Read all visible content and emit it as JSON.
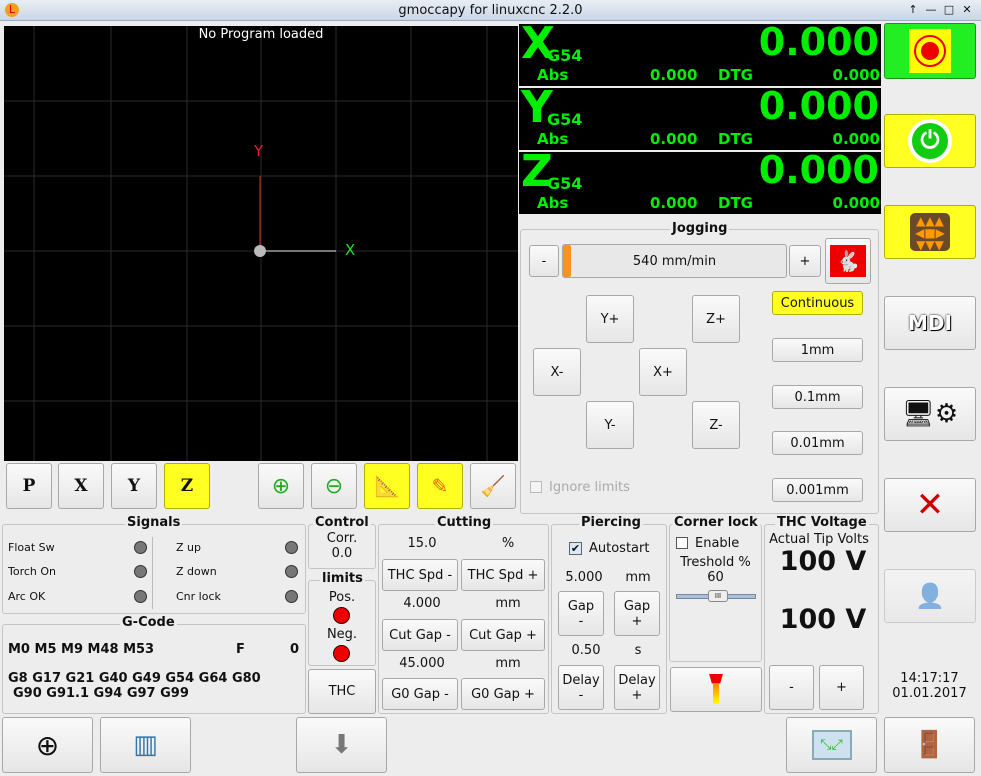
{
  "window": {
    "title": "gmoccapy for linuxcnc  2.2.0",
    "controls": [
      "↑",
      "—",
      "□",
      "✕"
    ]
  },
  "preview": {
    "status": "No Program loaded",
    "axis_x": "X",
    "axis_y": "Y",
    "colors": {
      "x_axis": "#22dd22",
      "y_axis": "#ee2222"
    }
  },
  "view_buttons": [
    {
      "label": "P",
      "icon": "view-perspective-icon"
    },
    {
      "label": "X",
      "icon": "view-x-icon"
    },
    {
      "label": "Y",
      "icon": "view-y-icon"
    },
    {
      "label": "Z",
      "icon": "view-z-icon",
      "active": true
    },
    {
      "icon": "zoom-in-icon"
    },
    {
      "icon": "zoom-out-icon"
    },
    {
      "icon": "dimensions-icon",
      "active": true
    },
    {
      "icon": "pencil-icon",
      "active": true
    },
    {
      "icon": "broom-clear-icon"
    }
  ],
  "dro": [
    {
      "axis": "X",
      "coord": "G54",
      "value": "0.000",
      "abs_label": "Abs",
      "abs": "0.000",
      "dtg_label": "DTG",
      "dtg": "0.000"
    },
    {
      "axis": "Y",
      "coord": "G54",
      "value": "0.000",
      "abs_label": "Abs",
      "abs": "0.000",
      "dtg_label": "DTG",
      "dtg": "0.000"
    },
    {
      "axis": "Z",
      "coord": "G54",
      "value": "0.000",
      "abs_label": "Abs",
      "abs": "0.000",
      "dtg_label": "DTG",
      "dtg": "0.000"
    }
  ],
  "colors": {
    "dro_text": "#00ee00",
    "estop": "#22ee22",
    "active": "#ffff22",
    "led_on": "#ee0000",
    "led_off": "#777777"
  },
  "jogging": {
    "title": "Jogging",
    "minus": "-",
    "plus": "+",
    "speed": "540 mm/min",
    "speed_fraction": 0.02,
    "buttons": {
      "yplus": "Y+",
      "zplus": "Z+",
      "xminus": "X-",
      "xplus": "X+",
      "yminus": "Y-",
      "zminus": "Z-"
    },
    "increments": [
      "Continuous",
      "1mm",
      "0.1mm",
      "0.01mm",
      "0.001mm"
    ],
    "ignore_limits": "Ignore limits"
  },
  "signals": {
    "title": "Signals",
    "items": [
      "Float Sw",
      "Torch On",
      "Arc OK",
      "Z up",
      "Z down",
      "Cnr lock"
    ]
  },
  "gcode": {
    "title": "G-Code",
    "mcodes": "M0 M5 M9 M48 M53",
    "f_label": "F",
    "f_value": "0",
    "gcodes1": "G8 G17 G21 G40 G49 G54 G64 G80",
    "gcodes2": "G90 G91.1 G94 G97 G99"
  },
  "control": {
    "title": "Control",
    "corr_label": "Corr.",
    "corr_value": "0.0"
  },
  "limits": {
    "title": "limits",
    "pos": "Pos.",
    "neg": "Neg.",
    "thc": "THC"
  },
  "cutting": {
    "title": "Cutting",
    "thc_spd": "15.0",
    "thc_unit": "%",
    "thc_minus": "THC Spd -",
    "thc_plus": "THC Spd +",
    "cut_gap": "4.000",
    "cut_unit": "mm",
    "cut_minus": "Cut Gap -",
    "cut_plus": "Cut Gap +",
    "g0_gap": "45.000",
    "g0_unit": "mm",
    "g0_minus": "G0 Gap -",
    "g0_plus": "G0 Gap +"
  },
  "piercing": {
    "title": "Piercing",
    "autostart": "Autostart",
    "autostart_checked": true,
    "gap": "5.000",
    "gap_unit": "mm",
    "gap_minus": "Gap\n-",
    "gap_plus": "Gap\n+",
    "delay": "0.50",
    "delay_unit": "s",
    "delay_minus": "Delay\n-",
    "delay_plus": "Delay\n+"
  },
  "corner_lock": {
    "title": "Corner lock",
    "enable": "Enable",
    "enabled": false,
    "threshold_label": "Treshold %",
    "threshold": "60"
  },
  "thc_voltage": {
    "title": "THC Voltage",
    "actual_label": "Actual Tip Volts",
    "actual": "100 V",
    "target": "100 V",
    "minus": "-",
    "plus": "+"
  },
  "clock": {
    "time": "14:17:17",
    "date": "01.01.2017"
  },
  "sidebar": [
    {
      "icon": "emergency-stop-icon"
    },
    {
      "icon": "power-icon"
    },
    {
      "icon": "manual-jog-icon"
    },
    {
      "icon": "mdi-icon",
      "label": "MDI"
    },
    {
      "icon": "auto-mode-icon"
    },
    {
      "icon": "settings-tools-icon"
    },
    {
      "icon": "user-tabs-icon",
      "disabled": true
    }
  ]
}
